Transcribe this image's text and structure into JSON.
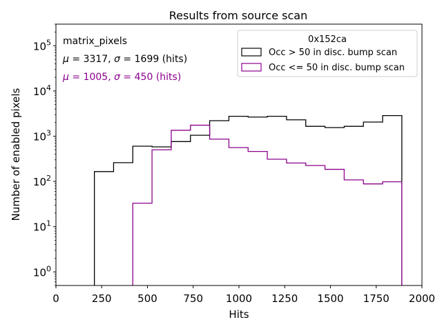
{
  "chart_data": {
    "type": "histogram",
    "title": "Results from source scan",
    "xlabel": "Hits",
    "ylabel": "Number of enabled pixels",
    "yscale": "log",
    "xlim": [
      0,
      2000
    ],
    "ylim": [
      0.5,
      300000
    ],
    "xticks": [
      0,
      250,
      500,
      750,
      1000,
      1250,
      1500,
      1750,
      2000
    ],
    "xtick_labels": [
      "0",
      "250",
      "500",
      "750",
      "1000",
      "1250",
      "1500",
      "1750",
      "2000"
    ],
    "yticks": [
      {
        "value": 1,
        "base": "10",
        "exp": "0"
      },
      {
        "value": 10,
        "base": "10",
        "exp": "1"
      },
      {
        "value": 100,
        "base": "10",
        "exp": "2"
      },
      {
        "value": 1000,
        "base": "10",
        "exp": "3"
      },
      {
        "value": 10000,
        "base": "10",
        "exp": "4"
      },
      {
        "value": 100000,
        "base": "10",
        "exp": "5"
      }
    ],
    "annotations": {
      "name": "matrix_pixels",
      "stats_black": {
        "mu": "3317",
        "sigma": "1699",
        "unit": "(hits)"
      },
      "stats_purple": {
        "mu": "1005",
        "sigma": "450",
        "unit": "(hits)"
      }
    },
    "legend": {
      "title": "0x152ca",
      "position": "top-right"
    },
    "series": [
      {
        "name": "Occ > 50 in disc. bump scan",
        "color": "#000000",
        "edges": [
          210,
          315,
          420,
          525,
          630,
          735,
          840,
          945,
          1050,
          1155,
          1260,
          1365,
          1470,
          1575,
          1680,
          1785,
          1890
        ],
        "counts": [
          165,
          260,
          600,
          580,
          760,
          1050,
          2200,
          2750,
          2650,
          2750,
          2300,
          1650,
          1550,
          1650,
          2050,
          2850
        ]
      },
      {
        "name": "Occ <= 50 in disc. bump scan",
        "color": "#8b008b",
        "edges": [
          420,
          525,
          630,
          735,
          840,
          945,
          1050,
          1155,
          1260,
          1365,
          1470,
          1575,
          1680,
          1785,
          1890
        ],
        "counts": [
          33,
          500,
          1350,
          1750,
          860,
          560,
          460,
          310,
          255,
          225,
          185,
          108,
          88,
          98
        ]
      }
    ]
  }
}
